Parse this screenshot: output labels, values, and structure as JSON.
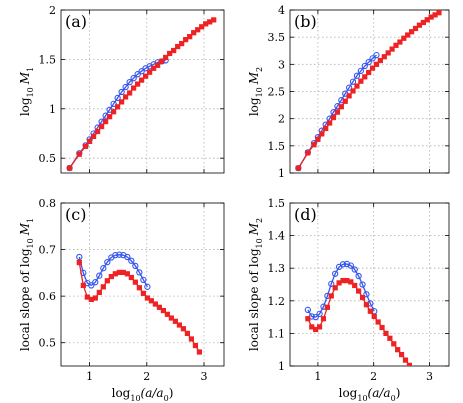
{
  "chart_data": [
    {
      "panel": "(a)",
      "type": "line",
      "ylabel_main": "log",
      "ylabel_sub_base": "10",
      "ylabel_var": "M",
      "ylabel_var_sub": "1",
      "xlim": [
        0.5,
        3.35
      ],
      "ylim": [
        0.35,
        2.0
      ],
      "xticks": [
        1,
        2,
        3
      ],
      "xtick_labels": [
        "",
        "",
        ""
      ],
      "yticks": [
        0.5,
        1,
        1.5,
        2
      ],
      "ytick_labels": [
        "0.5",
        "1",
        "1.5",
        "2"
      ],
      "grid": true,
      "series": [
        {
          "color": "#3355ee",
          "marker": "circle",
          "x": [
            0.65,
            0.82,
            0.93,
            1.0,
            1.07,
            1.14,
            1.21,
            1.28,
            1.35,
            1.42,
            1.49,
            1.56,
            1.63,
            1.7,
            1.77,
            1.84,
            1.91,
            1.98,
            2.05,
            2.12,
            2.19,
            2.26,
            2.33
          ],
          "y": [
            0.4,
            0.55,
            0.63,
            0.69,
            0.75,
            0.81,
            0.87,
            0.93,
            0.99,
            1.05,
            1.11,
            1.17,
            1.22,
            1.27,
            1.31,
            1.35,
            1.38,
            1.41,
            1.43,
            1.45,
            1.47,
            1.48,
            1.49
          ]
        },
        {
          "color": "#ee2222",
          "marker": "square",
          "x": [
            0.65,
            0.82,
            0.93,
            1.0,
            1.07,
            1.14,
            1.21,
            1.28,
            1.35,
            1.42,
            1.49,
            1.56,
            1.63,
            1.7,
            1.77,
            1.84,
            1.91,
            1.98,
            2.05,
            2.12,
            2.19,
            2.26,
            2.33,
            2.4,
            2.47,
            2.54,
            2.61,
            2.68,
            2.75,
            2.82,
            2.89,
            2.96,
            3.03,
            3.1,
            3.17
          ],
          "y": [
            0.4,
            0.54,
            0.62,
            0.67,
            0.72,
            0.77,
            0.82,
            0.87,
            0.92,
            0.97,
            1.02,
            1.07,
            1.12,
            1.16,
            1.21,
            1.25,
            1.29,
            1.33,
            1.37,
            1.41,
            1.44,
            1.48,
            1.52,
            1.56,
            1.59,
            1.63,
            1.66,
            1.7,
            1.73,
            1.77,
            1.8,
            1.83,
            1.86,
            1.88,
            1.9
          ]
        }
      ]
    },
    {
      "panel": "(b)",
      "type": "line",
      "ylabel_main": "log",
      "ylabel_sub_base": "10",
      "ylabel_var": "M",
      "ylabel_var_sub": "2",
      "xlim": [
        0.5,
        3.35
      ],
      "ylim": [
        1.0,
        4.0
      ],
      "xticks": [
        1,
        2,
        3
      ],
      "xtick_labels": [
        "",
        "",
        ""
      ],
      "yticks": [
        1,
        1.5,
        2,
        2.5,
        3,
        3.5,
        4
      ],
      "ytick_labels": [
        "1",
        "1.5",
        "2",
        "2.5",
        "3",
        "3.5",
        "4"
      ],
      "grid": true,
      "series": [
        {
          "color": "#3355ee",
          "marker": "circle",
          "x": [
            0.65,
            0.82,
            0.93,
            1.0,
            1.07,
            1.14,
            1.21,
            1.28,
            1.35,
            1.42,
            1.49,
            1.56,
            1.63,
            1.7,
            1.77,
            1.84,
            1.91,
            1.98,
            2.05
          ],
          "y": [
            1.09,
            1.38,
            1.55,
            1.66,
            1.78,
            1.89,
            2.0,
            2.12,
            2.23,
            2.34,
            2.46,
            2.57,
            2.68,
            2.79,
            2.88,
            2.97,
            3.04,
            3.11,
            3.17
          ]
        },
        {
          "color": "#ee2222",
          "marker": "square",
          "x": [
            0.65,
            0.82,
            0.93,
            1.0,
            1.07,
            1.14,
            1.21,
            1.28,
            1.35,
            1.42,
            1.49,
            1.56,
            1.63,
            1.7,
            1.77,
            1.84,
            1.91,
            1.98,
            2.05,
            2.12,
            2.19,
            2.26,
            2.33,
            2.4,
            2.47,
            2.54,
            2.61,
            2.68,
            2.75,
            2.82,
            2.89,
            2.96,
            3.03,
            3.1,
            3.17
          ],
          "y": [
            1.09,
            1.37,
            1.52,
            1.62,
            1.72,
            1.82,
            1.92,
            2.02,
            2.12,
            2.22,
            2.32,
            2.42,
            2.51,
            2.6,
            2.69,
            2.77,
            2.85,
            2.93,
            3.0,
            3.07,
            3.14,
            3.21,
            3.28,
            3.35,
            3.41,
            3.48,
            3.54,
            3.6,
            3.66,
            3.72,
            3.77,
            3.82,
            3.87,
            3.91,
            3.95
          ]
        }
      ]
    },
    {
      "panel": "(c)",
      "type": "line",
      "ylabel_main": "local slope of log",
      "ylabel_sub_base": "10",
      "ylabel_var": "M",
      "ylabel_var_sub": "1",
      "xlabel_main": "log",
      "xlabel_sub_base": "10",
      "xlabel_rest": "(a/a",
      "xlabel_rest_sub": "0",
      "xlabel_close": ")",
      "xlim": [
        0.5,
        3.35
      ],
      "ylim": [
        0.45,
        0.8
      ],
      "xticks": [
        1,
        2,
        3
      ],
      "xtick_labels": [
        "1",
        "2",
        "3"
      ],
      "yticks": [
        0.5,
        0.6,
        0.7,
        0.8
      ],
      "ytick_labels": [
        "0.5",
        "0.6",
        "0.7",
        "0.8"
      ],
      "grid": true,
      "series": [
        {
          "color": "#3355ee",
          "marker": "circle",
          "x": [
            0.82,
            0.89,
            0.96,
            1.03,
            1.1,
            1.17,
            1.24,
            1.31,
            1.38,
            1.45,
            1.52,
            1.59,
            1.66,
            1.73,
            1.8,
            1.87,
            1.94,
            2.01
          ],
          "y": [
            0.684,
            0.65,
            0.628,
            0.623,
            0.63,
            0.644,
            0.66,
            0.673,
            0.683,
            0.688,
            0.689,
            0.688,
            0.684,
            0.676,
            0.665,
            0.651,
            0.635,
            0.62
          ]
        },
        {
          "color": "#ee2222",
          "marker": "square",
          "x": [
            0.82,
            0.89,
            0.96,
            1.03,
            1.1,
            1.17,
            1.24,
            1.31,
            1.38,
            1.45,
            1.52,
            1.59,
            1.66,
            1.73,
            1.8,
            1.87,
            1.94,
            2.01,
            2.08,
            2.15,
            2.22,
            2.29,
            2.36,
            2.43,
            2.5,
            2.57,
            2.64,
            2.71,
            2.78,
            2.85,
            2.92
          ],
          "y": [
            0.672,
            0.623,
            0.598,
            0.593,
            0.596,
            0.608,
            0.62,
            0.633,
            0.642,
            0.648,
            0.651,
            0.651,
            0.648,
            0.64,
            0.63,
            0.618,
            0.606,
            0.596,
            0.59,
            0.583,
            0.576,
            0.569,
            0.561,
            0.553,
            0.546,
            0.538,
            0.53,
            0.52,
            0.508,
            0.494,
            0.48
          ]
        }
      ]
    },
    {
      "panel": "(d)",
      "type": "line",
      "ylabel_main": "local slope of log",
      "ylabel_sub_base": "10",
      "ylabel_var": "M",
      "ylabel_var_sub": "2",
      "xlabel_main": "log",
      "xlabel_sub_base": "10",
      "xlabel_rest": "(a/a",
      "xlabel_rest_sub": "0",
      "xlabel_close": ")",
      "xlim": [
        0.5,
        3.35
      ],
      "ylim": [
        1.0,
        1.5
      ],
      "xticks": [
        1,
        2,
        3
      ],
      "xtick_labels": [
        "1",
        "2",
        "3"
      ],
      "yticks": [
        1,
        1.1,
        1.2,
        1.3,
        1.4,
        1.5
      ],
      "ytick_labels": [
        "1",
        "1.1",
        "1.2",
        "1.3",
        "1.4",
        "1.5"
      ],
      "grid": true,
      "series": [
        {
          "color": "#3355ee",
          "marker": "circle",
          "x": [
            0.82,
            0.89,
            0.96,
            1.03,
            1.1,
            1.17,
            1.24,
            1.31,
            1.38,
            1.45,
            1.52,
            1.59,
            1.66,
            1.73,
            1.8,
            1.87,
            1.94,
            2.01
          ],
          "y": [
            1.172,
            1.152,
            1.15,
            1.16,
            1.182,
            1.215,
            1.252,
            1.283,
            1.304,
            1.312,
            1.313,
            1.308,
            1.296,
            1.276,
            1.25,
            1.22,
            1.192,
            1.168
          ]
        },
        {
          "color": "#ee2222",
          "marker": "square",
          "x": [
            0.82,
            0.89,
            0.96,
            1.03,
            1.1,
            1.17,
            1.24,
            1.31,
            1.38,
            1.45,
            1.52,
            1.59,
            1.66,
            1.73,
            1.8,
            1.87,
            1.94,
            2.01,
            2.08,
            2.15,
            2.22,
            2.29,
            2.36,
            2.43,
            2.5,
            2.57,
            2.64
          ],
          "y": [
            1.145,
            1.12,
            1.112,
            1.12,
            1.145,
            1.18,
            1.215,
            1.24,
            1.255,
            1.262,
            1.262,
            1.258,
            1.247,
            1.23,
            1.21,
            1.188,
            1.168,
            1.152,
            1.135,
            1.118,
            1.1,
            1.085,
            1.068,
            1.05,
            1.035,
            1.018,
            1.002
          ]
        }
      ]
    }
  ]
}
